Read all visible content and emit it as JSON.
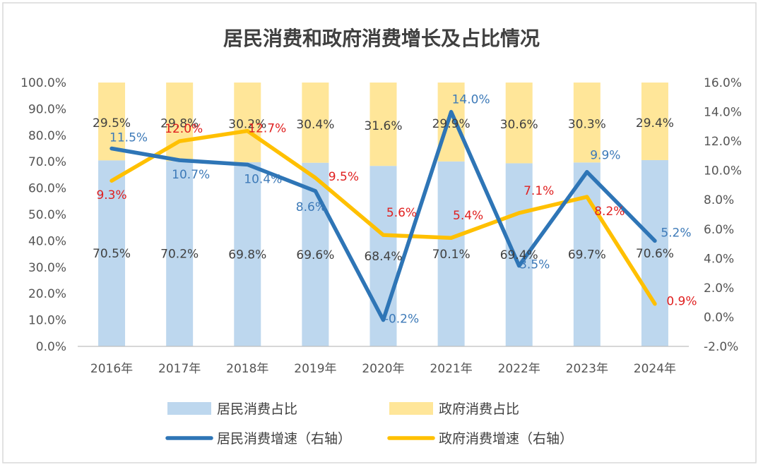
{
  "chart_data": {
    "type": "bar",
    "stacked": true,
    "title": "居民消费和政府消费增长及占比情况",
    "categories": [
      "2016年",
      "2017年",
      "2018年",
      "2019年",
      "2020年",
      "2021年",
      "2022年",
      "2023年",
      "2024年"
    ],
    "series": [
      {
        "name": "居民消费占比",
        "kind": "bar",
        "axis": "left",
        "color": "#bdd7ee",
        "values": [
          70.5,
          70.2,
          69.8,
          69.6,
          68.4,
          70.1,
          69.4,
          69.7,
          70.6
        ],
        "labels": [
          "70.5%",
          "70.2%",
          "69.8%",
          "69.6%",
          "68.4%",
          "70.1%",
          "69.4%",
          "69.7%",
          "70.6%"
        ]
      },
      {
        "name": "政府消费占比",
        "kind": "bar",
        "axis": "left",
        "color": "#ffe699",
        "values": [
          29.5,
          29.8,
          30.2,
          30.4,
          31.6,
          29.9,
          30.6,
          30.3,
          29.4
        ],
        "labels": [
          "29.5%",
          "29.8%",
          "30.2%",
          "30.4%",
          "31.6%",
          "29.9%",
          "30.6%",
          "30.3%",
          "29.4%"
        ]
      },
      {
        "name": "居民消费增速（右轴）",
        "kind": "line",
        "axis": "right",
        "color": "#2e75b6",
        "values": [
          11.5,
          10.7,
          10.4,
          8.6,
          -0.2,
          14.0,
          3.5,
          9.9,
          5.2
        ],
        "labels": [
          "11.5%",
          "10.7%",
          "10.4%",
          "8.6%",
          "-0.2%",
          "14.0%",
          "3.5%",
          "9.9%",
          "5.2%"
        ]
      },
      {
        "name": "政府消费增速（右轴）",
        "kind": "line",
        "axis": "right",
        "color": "#ffc000",
        "values": [
          9.3,
          12.0,
          12.7,
          9.5,
          5.6,
          5.4,
          7.1,
          8.2,
          0.9
        ],
        "labels": [
          "9.3%",
          "12.0%",
          "12.7%",
          "9.5%",
          "5.6%",
          "5.4%",
          "7.1%",
          "8.2%",
          "0.9%"
        ]
      }
    ],
    "y_left": {
      "min": 0,
      "max": 100,
      "ticks": [
        "0.0%",
        "10.0%",
        "20.0%",
        "30.0%",
        "40.0%",
        "50.0%",
        "60.0%",
        "70.0%",
        "80.0%",
        "90.0%",
        "100.0%"
      ]
    },
    "y_right": {
      "min": -2,
      "max": 16,
      "ticks": [
        "-2.0%",
        "0.0%",
        "2.0%",
        "4.0%",
        "6.0%",
        "8.0%",
        "10.0%",
        "12.0%",
        "14.0%",
        "16.0%"
      ]
    },
    "grid": false,
    "legend": "bottom"
  }
}
